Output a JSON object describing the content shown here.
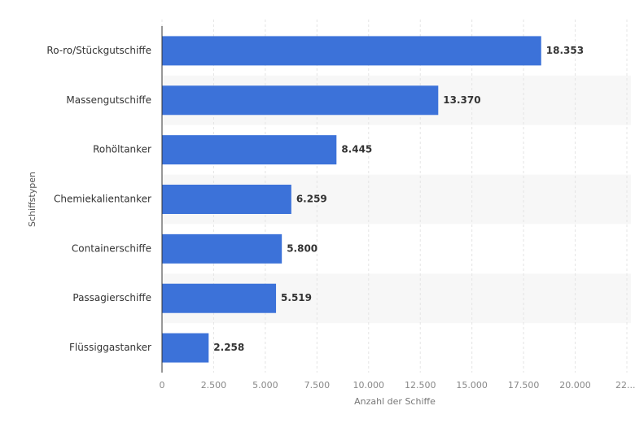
{
  "chart_data": {
    "type": "hbar",
    "categories": [
      "Ro-ro/Stückgutschiffe",
      "Massengutschiffe",
      "Rohöltanker",
      "Chemiekalientanker",
      "Containerschiffe",
      "Passagierschiffe",
      "Flüssiggastanker"
    ],
    "values": [
      18353,
      13370,
      8445,
      6259,
      5800,
      5519,
      2258
    ],
    "value_labels": [
      "18.353",
      "13.370",
      "8.445",
      "6.259",
      "5.800",
      "5.519",
      "2.258"
    ],
    "color": "#3c72d9",
    "xlabel": "Anzahl der Schiffe",
    "ylabel": "Schiffstypen",
    "xlim": [
      0,
      22500
    ],
    "xticks": [
      0,
      {
        "value": 2500,
        "label": "2.500"
      },
      {
        "value": 5000,
        "label": "5.000"
      },
      {
        "value": 7500,
        "label": "7.500"
      },
      {
        "value": 10000,
        "label": "10.000"
      },
      {
        "value": 12500,
        "label": "12.500"
      },
      {
        "value": 15000,
        "label": "15.000"
      },
      {
        "value": 17500,
        "label": "17.500"
      },
      {
        "value": 20000,
        "label": "20.000"
      },
      {
        "value": 22500,
        "label": "22...."
      }
    ],
    "grid": true
  }
}
